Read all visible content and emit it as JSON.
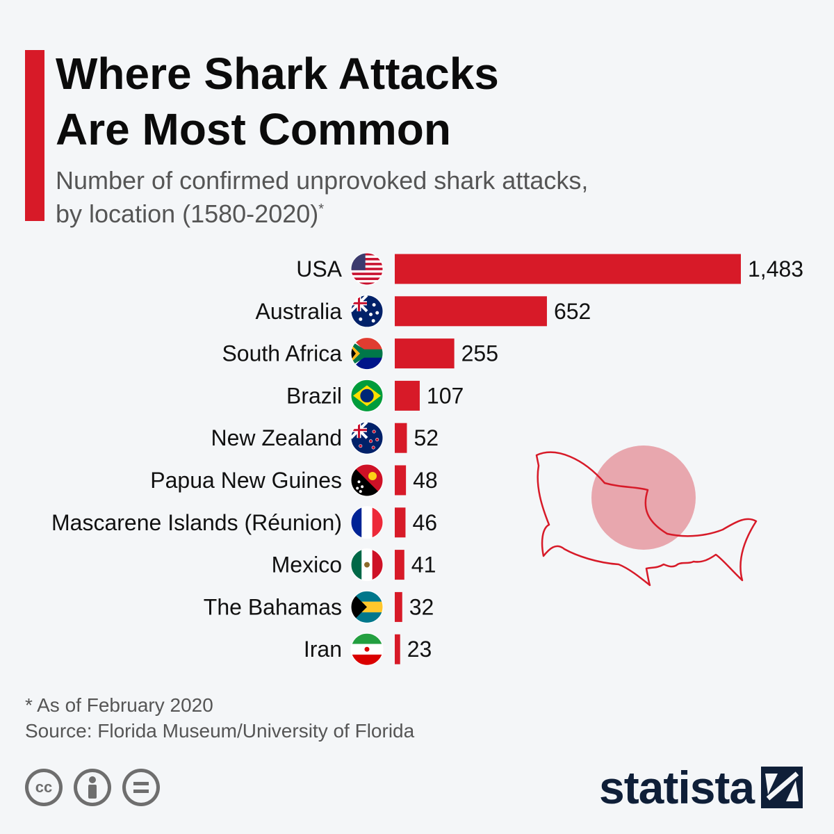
{
  "header": {
    "title_line1": "Where Shark Attacks",
    "title_line2": "Are Most Common",
    "subtitle_line1": "Number of confirmed unprovoked shark attacks,",
    "subtitle_line2": "by location (1580-2020)",
    "subtitle_marker": "*"
  },
  "chart_data": {
    "type": "bar",
    "orientation": "horizontal",
    "categories": [
      "USA",
      "Australia",
      "South Africa",
      "Brazil",
      "New Zealand",
      "Papua New Guines",
      "Mascarene Islands (Réunion)",
      "Mexico",
      "The Bahamas",
      "Iran"
    ],
    "values": [
      1483,
      652,
      255,
      107,
      52,
      48,
      46,
      41,
      32,
      23
    ],
    "value_labels": [
      "1,483",
      "652",
      "255",
      "107",
      "52",
      "48",
      "46",
      "41",
      "32",
      "23"
    ],
    "flags": [
      "usa-flag-icon",
      "australia-flag-icon",
      "south-africa-flag-icon",
      "brazil-flag-icon",
      "new-zealand-flag-icon",
      "papua-new-guinea-flag-icon",
      "france-flag-icon",
      "mexico-flag-icon",
      "bahamas-flag-icon",
      "iran-flag-icon"
    ],
    "bar_color": "#d71a28",
    "xlim": [
      0,
      1483
    ],
    "grid": false
  },
  "footer": {
    "note": "* As of February 2020",
    "source": "Source: Florida Museum/University of Florida",
    "license_icons": [
      "cc-icon",
      "attribution-icon",
      "no-derivatives-icon"
    ],
    "brand": "statista"
  },
  "colors": {
    "accent": "#d71a28",
    "background": "#f4f6f8",
    "brand": "#0f1f38"
  }
}
